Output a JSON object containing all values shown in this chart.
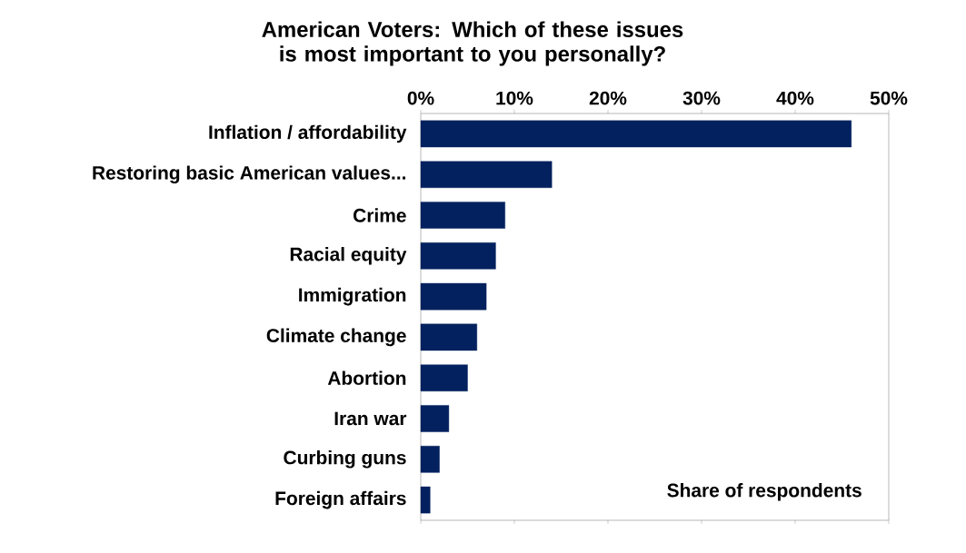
{
  "chart_data": {
    "type": "bar",
    "orientation": "horizontal",
    "title": "American Voters: Which of these issues is most important to you personally?",
    "categories": [
      "Inflation / affordability",
      "Restoring basic American values...",
      "Crime",
      "Racial equity",
      "Immigration",
      "Climate change",
      "Abortion",
      "Iran war",
      "Curbing guns",
      "Foreign affairs"
    ],
    "values": [
      46,
      14,
      9,
      8,
      7,
      6,
      5,
      3,
      2,
      1
    ],
    "color": "#03215e",
    "xlim": [
      0,
      50
    ],
    "xticks": [
      {
        "value": 0,
        "label": "0%"
      },
      {
        "value": 10,
        "label": "10%"
      },
      {
        "value": 20,
        "label": "20%"
      },
      {
        "value": 30,
        "label": "30%"
      },
      {
        "value": 40,
        "label": "40%"
      },
      {
        "value": 50,
        "label": "50%"
      }
    ],
    "annotations": [
      "Share of respondents"
    ],
    "grid": false
  }
}
